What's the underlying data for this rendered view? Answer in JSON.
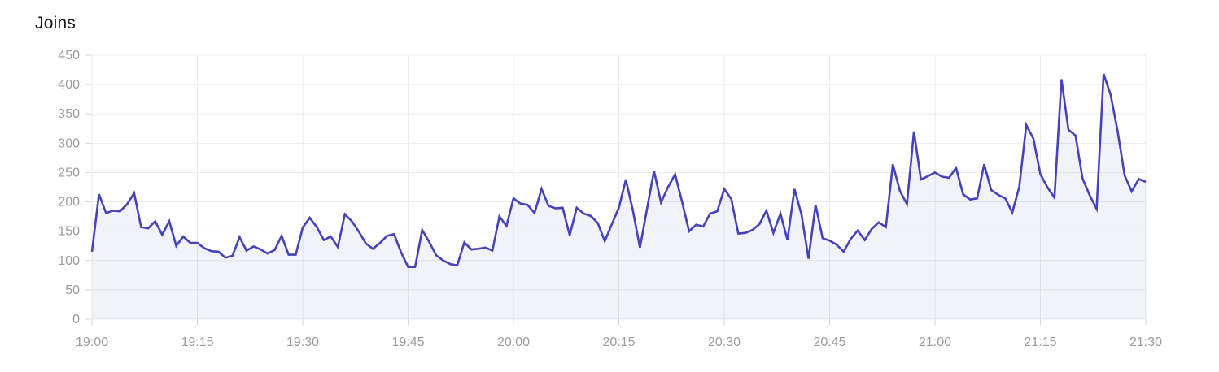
{
  "chart": {
    "title": "Joins",
    "colors": {
      "line": "#4643b8",
      "area_fill": "rgba(70,67,184,0.07)",
      "grid": "#ebebeb",
      "tick": "#d6d6d6",
      "axis_text": "#9b9b9b",
      "title_text": "#17171a",
      "background": "#ffffff"
    }
  },
  "chart_data": {
    "type": "area",
    "title": "Joins",
    "series_name": "Joins",
    "x_start": "19:00",
    "x_end": "21:30",
    "interval_minutes": 1,
    "x_tick_labels": [
      "19:00",
      "19:15",
      "19:30",
      "19:45",
      "20:00",
      "20:15",
      "20:30",
      "20:45",
      "21:00",
      "21:15",
      "21:30"
    ],
    "y_ticks": [
      0,
      50,
      100,
      150,
      200,
      250,
      300,
      350,
      400,
      450
    ],
    "ylim": [
      0,
      450
    ],
    "grid": true,
    "legend": false,
    "values": [
      115,
      213,
      181,
      185,
      184,
      196,
      215,
      157,
      155,
      167,
      144,
      167,
      125,
      141,
      130,
      130,
      121,
      116,
      115,
      105,
      108,
      140,
      117,
      124,
      119,
      112,
      118,
      142,
      110,
      110,
      156,
      173,
      157,
      135,
      141,
      123,
      179,
      167,
      149,
      129,
      120,
      130,
      142,
      145,
      114,
      89,
      89,
      152,
      132,
      109,
      100,
      94,
      92,
      131,
      119,
      120,
      122,
      117,
      175,
      159,
      206,
      197,
      195,
      181,
      222,
      193,
      189,
      190,
      143,
      190,
      180,
      176,
      164,
      133,
      162,
      190,
      238,
      185,
      122,
      187,
      253,
      199,
      225,
      247,
      200,
      150,
      161,
      158,
      180,
      184,
      222,
      205,
      146,
      147,
      152,
      162,
      185,
      147,
      180,
      135,
      222,
      178,
      103,
      195,
      138,
      134,
      127,
      115,
      137,
      151,
      135,
      154,
      165,
      157,
      264,
      219,
      196,
      320,
      238,
      244,
      250,
      243,
      241,
      258,
      213,
      204,
      206,
      264,
      220,
      212,
      206,
      182,
      226,
      331,
      308,
      247,
      225,
      207,
      409,
      323,
      313,
      240,
      212,
      188,
      418,
      383,
      320,
      245,
      218,
      239,
      234
    ]
  }
}
